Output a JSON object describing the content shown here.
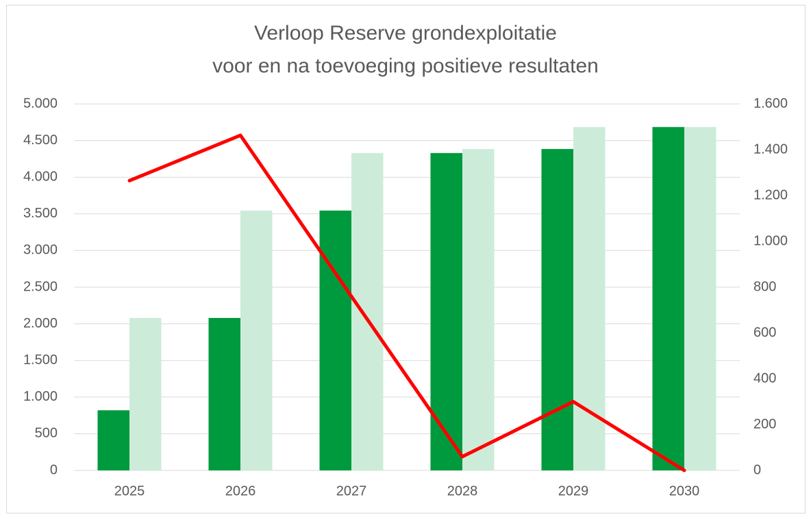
{
  "chart_data": {
    "type": "bar_line",
    "title": [
      "Verloop Reserve grondexploitatie",
      "voor en na toevoeging positieve resultaten"
    ],
    "categories": [
      "2025",
      "2026",
      "2027",
      "2028",
      "2029",
      "2030"
    ],
    "series": [
      {
        "type": "bar",
        "color": "#009a3e",
        "values": [
          820,
          2080,
          3545,
          4330,
          4385,
          4685
        ]
      },
      {
        "type": "bar",
        "color": "#cdebd9",
        "values": [
          2080,
          3545,
          4330,
          4385,
          4685,
          4685
        ]
      },
      {
        "type": "line",
        "color": "#ff0000",
        "axis": "y2",
        "values": [
          1265,
          1463,
          760,
          60,
          300,
          0
        ]
      }
    ],
    "ylim": [
      0,
      5000
    ],
    "yticks": [
      0,
      500,
      {
        "value": 1000,
        "label": "1.000"
      },
      {
        "value": 1500,
        "label": "1.500"
      },
      {
        "value": 2000,
        "label": "2.000"
      },
      {
        "value": 2500,
        "label": "2.500"
      },
      {
        "value": 3000,
        "label": "3.000"
      },
      {
        "value": 3500,
        "label": "3.500"
      },
      {
        "value": 4000,
        "label": "4.000"
      },
      {
        "value": 4500,
        "label": "4.500"
      },
      {
        "value": 5000,
        "label": "5.000"
      }
    ],
    "y2lim": [
      0,
      1600
    ],
    "y2ticks": [
      0,
      200,
      400,
      600,
      800,
      {
        "value": 1000,
        "label": "1.000"
      },
      {
        "value": 1200,
        "label": "1.200"
      },
      {
        "value": 1400,
        "label": "1.400"
      },
      {
        "value": 1600,
        "label": "1.600"
      }
    ],
    "grid": true
  }
}
